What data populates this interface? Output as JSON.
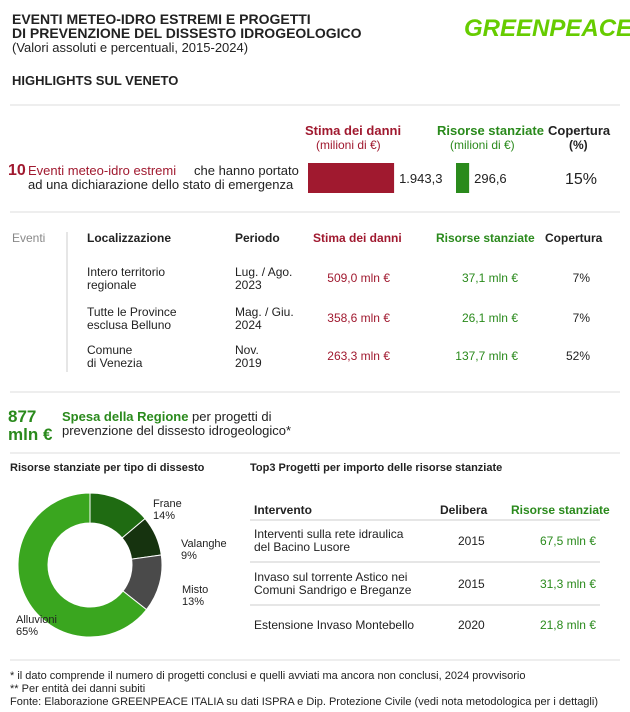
{
  "header": {
    "title_line1": "EVENTI METEO-IDRO ESTREMI E PROGETTI",
    "title_line2": "DI PREVENZIONE DEL DISSESTO IDROGEOLOGICO",
    "subtitle": "(Valori assoluti e percentuali, 2015-2024)",
    "logo": "GREENPEACE",
    "section": "HIGHLIGHTS SUL VENETO"
  },
  "summary": {
    "count": "10",
    "count_label": "Eventi meteo-idro estremi",
    "text_line1": "che hanno portato",
    "text_line2": "ad una dichiarazione dello stato di emergenza",
    "coverage_header": "Copertura",
    "coverage_unit": "(%)",
    "coverage": "15%"
  },
  "events_table": {
    "headers": [
      "Eventi",
      "Localizzazione",
      "Periodo",
      "Stima dei danni",
      "Risorse stanziate",
      "Copertura"
    ],
    "rows": [
      [
        "Intero territorio\nregionale",
        "Lug. / Ago.\n2023",
        "509,0 mln €",
        "37,1 mln €",
        "7%"
      ],
      [
        "Tutte le Province\nesclusa Belluno",
        "Mag. / Giu.\n2024",
        "358,6 mln €",
        "26,1 mln €",
        "7%"
      ],
      [
        "Comune\ndi Venezia",
        "Nov.\n2019",
        "263,3 mln €",
        "137,7 mln €",
        "52%"
      ]
    ]
  },
  "spending": {
    "amount": "877",
    "unit": "mln €",
    "label": "Spesa della Regione",
    "text_line1": "per progetti di",
    "text_line2": "prevenzione del dissesto idrogeologico*"
  },
  "projects_table": {
    "title": "Top3 Progetti per importo delle risorse stanziate",
    "headers": [
      "Intervento",
      "Delibera",
      "Risorse stanziate"
    ],
    "rows": [
      [
        "Interventi sulla rete idraulica\ndel Bacino Lusore",
        "2015",
        "67,5 mln €"
      ],
      [
        "Invaso sul torrente Astico nei\nComuni Sandrigo e Breganze",
        "2015",
        "31,3 mln €"
      ],
      [
        "Estensione Invaso Montebello",
        "2020",
        "21,8 mln €"
      ]
    ]
  },
  "footnotes": [
    "* il dato comprende il numero di progetti conclusi e quelli avviati ma ancora non conclusi, 2024 provvisorio",
    "** Per entità dei danni subiti",
    "Fonte: Elaborazione GREENPEACE ITALIA su dati ISPRA e Dip. Protezione Civile (vedi nota metodologica per i dettagli)"
  ],
  "chart_data": [
    {
      "type": "bar",
      "series": [
        {
          "name": "Stima dei danni",
          "unit": "(milioni di €)",
          "color": "#a0192f",
          "values": [
            1943.3
          ],
          "value_labels": [
            "1.943,3"
          ]
        },
        {
          "name": "Risorse stanziate",
          "unit": "(milioni di €)",
          "color": "#2a8a1c",
          "values": [
            296.6
          ],
          "value_labels": [
            "296,6"
          ]
        }
      ]
    },
    {
      "type": "pie",
      "title": "Risorse stanziate per tipo di dissesto",
      "categories": [
        "Frane",
        "Valanghe",
        "Misto",
        "Alluvioni"
      ],
      "values": [
        14,
        9,
        13,
        65
      ],
      "value_labels": [
        "14%",
        "9%",
        "13%",
        "65%"
      ],
      "colors": [
        "#1f6b12",
        "#16330f",
        "#4a4a4a",
        "#3aa61f"
      ]
    }
  ]
}
